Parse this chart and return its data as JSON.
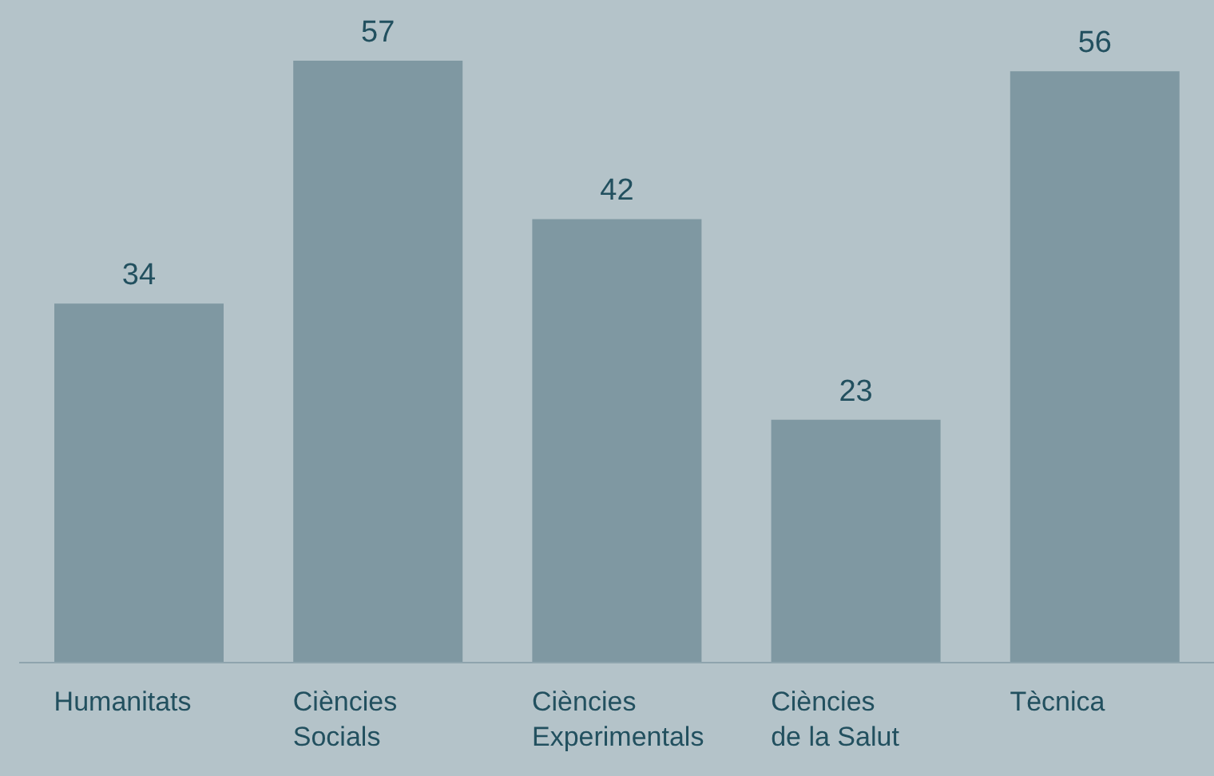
{
  "chart_data": {
    "type": "bar",
    "categories": [
      "Humanitats",
      "Ciències Socials",
      "Ciències Experimentals",
      "Ciències de la Salut",
      "Tècnica"
    ],
    "values": [
      34,
      57,
      42,
      23,
      56
    ],
    "color": "#7f98a2",
    "data_labels": true
  }
}
